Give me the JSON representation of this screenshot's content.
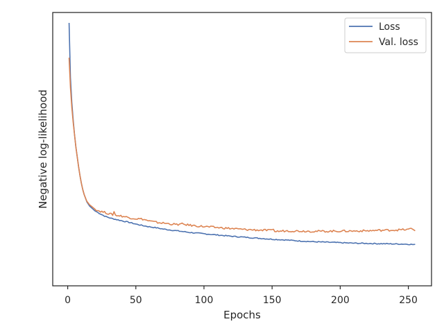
{
  "chart_data": {
    "type": "line",
    "title": "",
    "xlabel": "Epochs",
    "ylabel": "Negative log-likelihood",
    "xlim": [
      -11,
      267
    ],
    "ylim": [
      0.0,
      1.0
    ],
    "x_ticks": [
      0,
      50,
      100,
      150,
      200,
      250
    ],
    "y_ticks_visible": false,
    "grid": false,
    "legend_position": "top-right",
    "colors": {
      "Loss": "#4c72b0",
      "Val. loss": "#dd8452",
      "axis": "#262626"
    },
    "epochs": [
      1,
      255
    ],
    "series": [
      {
        "name": "Loss",
        "points": [
          [
            1,
            1.0
          ],
          [
            2,
            0.78
          ],
          [
            3,
            0.68
          ],
          [
            4,
            0.61
          ],
          [
            5,
            0.55
          ],
          [
            6,
            0.5
          ],
          [
            7,
            0.46
          ],
          [
            8,
            0.42
          ],
          [
            9,
            0.385
          ],
          [
            10,
            0.355
          ],
          [
            11,
            0.33
          ],
          [
            12,
            0.31
          ],
          [
            14,
            0.28
          ],
          [
            16,
            0.263
          ],
          [
            18,
            0.253
          ],
          [
            20,
            0.243
          ],
          [
            22,
            0.237
          ],
          [
            25,
            0.228
          ],
          [
            28,
            0.22
          ],
          [
            32,
            0.213
          ],
          [
            36,
            0.208
          ],
          [
            40,
            0.203
          ],
          [
            45,
            0.197
          ],
          [
            50,
            0.19
          ],
          [
            55,
            0.184
          ],
          [
            60,
            0.179
          ],
          [
            65,
            0.175
          ],
          [
            70,
            0.17
          ],
          [
            80,
            0.163
          ],
          [
            90,
            0.156
          ],
          [
            100,
            0.151
          ],
          [
            110,
            0.146
          ],
          [
            120,
            0.141
          ],
          [
            130,
            0.137
          ],
          [
            140,
            0.133
          ],
          [
            150,
            0.129
          ],
          [
            160,
            0.126
          ],
          [
            170,
            0.122
          ],
          [
            180,
            0.119
          ],
          [
            190,
            0.117
          ],
          [
            200,
            0.115
          ],
          [
            210,
            0.113
          ],
          [
            220,
            0.112
          ],
          [
            230,
            0.111
          ],
          [
            240,
            0.11
          ],
          [
            250,
            0.109
          ],
          [
            255,
            0.107
          ]
        ]
      },
      {
        "name": "Val. loss",
        "points": [
          [
            1,
            0.86
          ],
          [
            2,
            0.74
          ],
          [
            3,
            0.66
          ],
          [
            4,
            0.6
          ],
          [
            5,
            0.55
          ],
          [
            6,
            0.5
          ],
          [
            7,
            0.46
          ],
          [
            8,
            0.42
          ],
          [
            9,
            0.385
          ],
          [
            10,
            0.355
          ],
          [
            11,
            0.33
          ],
          [
            12,
            0.31
          ],
          [
            14,
            0.282
          ],
          [
            16,
            0.268
          ],
          [
            18,
            0.259
          ],
          [
            20,
            0.25
          ],
          [
            22,
            0.245
          ],
          [
            25,
            0.24
          ],
          [
            28,
            0.236
          ],
          [
            30,
            0.232
          ],
          [
            33,
            0.228
          ],
          [
            34,
            0.24
          ],
          [
            35,
            0.226
          ],
          [
            40,
            0.222
          ],
          [
            45,
            0.216
          ],
          [
            50,
            0.212
          ],
          [
            55,
            0.21
          ],
          [
            60,
            0.202
          ],
          [
            65,
            0.197
          ],
          [
            70,
            0.194
          ],
          [
            80,
            0.188
          ],
          [
            84,
            0.19
          ],
          [
            90,
            0.185
          ],
          [
            100,
            0.18
          ],
          [
            110,
            0.176
          ],
          [
            120,
            0.172
          ],
          [
            130,
            0.168
          ],
          [
            140,
            0.166
          ],
          [
            150,
            0.164
          ],
          [
            151,
            0.172
          ],
          [
            152,
            0.16
          ],
          [
            160,
            0.163
          ],
          [
            170,
            0.162
          ],
          [
            180,
            0.161
          ],
          [
            190,
            0.161
          ],
          [
            200,
            0.162
          ],
          [
            210,
            0.162
          ],
          [
            220,
            0.163
          ],
          [
            230,
            0.165
          ],
          [
            240,
            0.166
          ],
          [
            250,
            0.168
          ],
          [
            252,
            0.172
          ],
          [
            255,
            0.166
          ]
        ]
      }
    ]
  }
}
